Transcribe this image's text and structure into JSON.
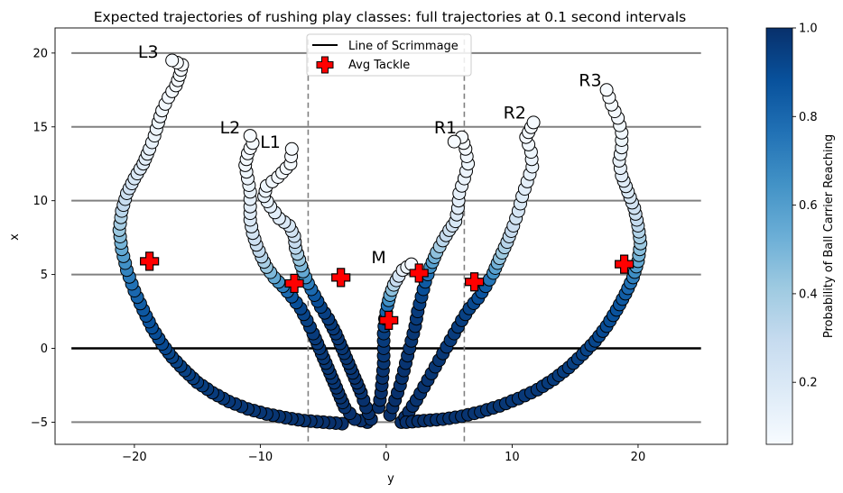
{
  "chart_data": {
    "type": "scatter",
    "title": "Expected trajectories of rushing play classes: full trajectories at 0.1 second intervals",
    "xlabel": "y",
    "ylabel": "x",
    "xlim": [
      -26.3,
      27.1
    ],
    "ylim": [
      -6.5,
      21.7
    ],
    "xticks": [
      -20,
      -10,
      0,
      10,
      20
    ],
    "yticks": [
      -5,
      0,
      5,
      10,
      15,
      20
    ],
    "grid": false,
    "colormap": "Blues",
    "colorbar": {
      "label": "Probability of Ball Carrier Reaching",
      "range": [
        0.06,
        1.0
      ],
      "ticks": [
        0.2,
        0.4,
        0.6,
        0.8,
        1.0
      ],
      "tick_labels": [
        "0.2",
        "0.4",
        "0.6",
        "0.8",
        "1.0"
      ]
    },
    "legend": {
      "placement": "top-center",
      "entries": [
        {
          "label": "Line of Scrimmage",
          "marker": "line",
          "color": "#000000"
        },
        {
          "label": "Avg Tackle",
          "marker": "plus",
          "color": "#ff0000"
        }
      ]
    },
    "hlines": {
      "gray": [
        -5,
        5,
        10,
        15,
        20
      ],
      "scrimmage": 0,
      "xrange": [
        -25,
        25
      ],
      "gray_color": "#808080",
      "scrimmage_color": "#000000"
    },
    "vlines": {
      "positions": [
        -6.2,
        6.2
      ],
      "yrange": [
        -6.3,
        21.2
      ],
      "style": "dashed",
      "color": "#808080"
    },
    "series": [
      {
        "name": "L3",
        "label_pos": [
          -18.9,
          20.1
        ],
        "points": [
          [
            -3.5,
            -5.1
          ],
          [
            -5.0,
            -5.0
          ],
          [
            -6.5,
            -4.9
          ],
          [
            -8.0,
            -4.7
          ],
          [
            -9.5,
            -4.45
          ],
          [
            -11.0,
            -4.1
          ],
          [
            -12.5,
            -3.6
          ],
          [
            -13.8,
            -3.0
          ],
          [
            -15.0,
            -2.3
          ],
          [
            -16.0,
            -1.5
          ],
          [
            -17.0,
            -0.6
          ],
          [
            -17.8,
            0.3
          ],
          [
            -18.6,
            1.4
          ],
          [
            -19.3,
            2.6
          ],
          [
            -20.0,
            3.9
          ],
          [
            -20.6,
            5.3
          ],
          [
            -21.0,
            6.7
          ],
          [
            -21.2,
            8.0
          ],
          [
            -21.0,
            9.3
          ],
          [
            -20.6,
            10.5
          ],
          [
            -20.0,
            11.5
          ],
          [
            -19.3,
            12.5
          ],
          [
            -18.8,
            13.5
          ],
          [
            -18.4,
            14.4
          ],
          [
            -18.1,
            15.3
          ],
          [
            -17.8,
            16.1
          ],
          [
            -17.3,
            17.0
          ],
          [
            -16.7,
            17.8
          ],
          [
            -16.4,
            18.5
          ],
          [
            -16.2,
            19.2
          ],
          [
            -17.0,
            19.5
          ]
        ],
        "probs": [
          1.0,
          1.0,
          0.99,
          0.99,
          0.98,
          0.98,
          0.97,
          0.96,
          0.95,
          0.94,
          0.93,
          0.91,
          0.89,
          0.86,
          0.8,
          0.7,
          0.55,
          0.42,
          0.33,
          0.26,
          0.21,
          0.17,
          0.14,
          0.12,
          0.1,
          0.09,
          0.08,
          0.07,
          0.07,
          0.06,
          0.06
        ]
      },
      {
        "name": "L2",
        "label_pos": [
          -12.4,
          15.0
        ],
        "points": [
          [
            -1.5,
            -5.0
          ],
          [
            -2.5,
            -4.8
          ],
          [
            -3.3,
            -4.0
          ],
          [
            -3.8,
            -3.0
          ],
          [
            -4.3,
            -2.0
          ],
          [
            -4.8,
            -1.0
          ],
          [
            -5.3,
            0.0
          ],
          [
            -5.8,
            1.0
          ],
          [
            -6.3,
            1.9
          ],
          [
            -6.8,
            2.7
          ],
          [
            -7.5,
            3.5
          ],
          [
            -8.2,
            4.2
          ],
          [
            -8.9,
            4.8
          ],
          [
            -9.5,
            5.5
          ],
          [
            -9.9,
            6.2
          ],
          [
            -10.3,
            7.0
          ],
          [
            -10.6,
            7.8
          ],
          [
            -10.8,
            8.7
          ],
          [
            -10.8,
            9.6
          ],
          [
            -10.8,
            10.6
          ],
          [
            -11.0,
            11.5
          ],
          [
            -11.2,
            12.4
          ],
          [
            -11.0,
            13.2
          ],
          [
            -10.6,
            13.9
          ],
          [
            -10.8,
            14.4
          ]
        ],
        "probs": [
          1.0,
          1.0,
          0.99,
          0.99,
          0.98,
          0.98,
          0.97,
          0.96,
          0.94,
          0.92,
          0.86,
          0.72,
          0.55,
          0.42,
          0.34,
          0.28,
          0.23,
          0.19,
          0.16,
          0.13,
          0.11,
          0.09,
          0.08,
          0.07,
          0.06
        ]
      },
      {
        "name": "L1",
        "label_pos": [
          -9.2,
          14.0
        ],
        "points": [
          [
            -1.2,
            -4.8
          ],
          [
            -1.6,
            -4.0
          ],
          [
            -2.0,
            -3.0
          ],
          [
            -2.5,
            -2.0
          ],
          [
            -3.0,
            -1.0
          ],
          [
            -3.5,
            0.0
          ],
          [
            -4.0,
            1.0
          ],
          [
            -4.6,
            2.0
          ],
          [
            -5.2,
            2.8
          ],
          [
            -5.7,
            3.6
          ],
          [
            -6.2,
            4.4
          ],
          [
            -6.6,
            5.2
          ],
          [
            -6.9,
            6.0
          ],
          [
            -7.2,
            6.8
          ],
          [
            -7.3,
            7.6
          ],
          [
            -7.7,
            8.3
          ],
          [
            -8.5,
            8.8
          ],
          [
            -9.2,
            9.6
          ],
          [
            -9.7,
            10.3
          ],
          [
            -9.5,
            11.0
          ],
          [
            -8.6,
            11.6
          ],
          [
            -7.6,
            12.5
          ],
          [
            -7.5,
            13.5
          ]
        ],
        "probs": [
          1.0,
          1.0,
          0.99,
          0.99,
          0.98,
          0.98,
          0.97,
          0.96,
          0.93,
          0.86,
          0.72,
          0.55,
          0.42,
          0.33,
          0.26,
          0.21,
          0.17,
          0.14,
          0.12,
          0.1,
          0.08,
          0.07,
          0.06
        ]
      },
      {
        "name": "M",
        "label_pos": [
          -0.6,
          6.2
        ],
        "points": [
          [
            -0.6,
            -4.0
          ],
          [
            -0.4,
            -3.0
          ],
          [
            -0.3,
            -2.0
          ],
          [
            -0.2,
            -1.0
          ],
          [
            -0.2,
            0.0
          ],
          [
            -0.2,
            1.0
          ],
          [
            -0.1,
            2.0
          ],
          [
            0.1,
            2.9
          ],
          [
            0.3,
            3.6
          ],
          [
            0.6,
            4.3
          ],
          [
            1.0,
            4.9
          ],
          [
            1.3,
            5.3
          ],
          [
            2.0,
            5.7
          ]
        ],
        "probs": [
          1.0,
          1.0,
          0.99,
          0.98,
          0.97,
          0.95,
          0.9,
          0.75,
          0.55,
          0.35,
          0.22,
          0.13,
          0.08
        ]
      },
      {
        "name": "R1",
        "label_pos": [
          4.7,
          15.0
        ],
        "points": [
          [
            0.3,
            -4.5
          ],
          [
            0.7,
            -3.5
          ],
          [
            1.1,
            -2.5
          ],
          [
            1.4,
            -1.5
          ],
          [
            1.7,
            -0.5
          ],
          [
            2.0,
            0.5
          ],
          [
            2.3,
            1.5
          ],
          [
            2.5,
            2.5
          ],
          [
            2.8,
            3.5
          ],
          [
            3.1,
            4.5
          ],
          [
            3.5,
            5.5
          ],
          [
            4.0,
            6.5
          ],
          [
            4.5,
            7.3
          ],
          [
            5.0,
            8.0
          ],
          [
            5.5,
            8.6
          ],
          [
            5.7,
            9.5
          ],
          [
            5.8,
            10.5
          ],
          [
            6.2,
            11.5
          ],
          [
            6.5,
            12.5
          ],
          [
            6.3,
            13.5
          ],
          [
            6.0,
            14.3
          ],
          [
            5.4,
            14.0
          ]
        ],
        "probs": [
          1.0,
          1.0,
          0.99,
          0.99,
          0.98,
          0.98,
          0.97,
          0.96,
          0.93,
          0.85,
          0.65,
          0.45,
          0.33,
          0.26,
          0.21,
          0.17,
          0.14,
          0.12,
          0.1,
          0.08,
          0.07,
          0.06
        ]
      },
      {
        "name": "R2",
        "label_pos": [
          10.2,
          16.0
        ],
        "points": [
          [
            1.2,
            -5.0
          ],
          [
            1.8,
            -4.3
          ],
          [
            2.4,
            -3.5
          ],
          [
            3.0,
            -2.6
          ],
          [
            3.6,
            -1.7
          ],
          [
            4.2,
            -0.8
          ],
          [
            4.8,
            0.1
          ],
          [
            5.4,
            1.0
          ],
          [
            6.0,
            1.9
          ],
          [
            6.6,
            2.7
          ],
          [
            7.3,
            3.4
          ],
          [
            7.9,
            4.2
          ],
          [
            8.5,
            5.1
          ],
          [
            9.0,
            6.1
          ],
          [
            9.6,
            7.2
          ],
          [
            10.1,
            8.3
          ],
          [
            10.5,
            9.3
          ],
          [
            10.8,
            10.3
          ],
          [
            11.2,
            11.3
          ],
          [
            11.6,
            12.3
          ],
          [
            11.5,
            13.3
          ],
          [
            11.1,
            14.3
          ],
          [
            11.7,
            15.3
          ]
        ],
        "probs": [
          1.0,
          1.0,
          0.99,
          0.99,
          0.98,
          0.98,
          0.97,
          0.96,
          0.95,
          0.93,
          0.9,
          0.84,
          0.65,
          0.45,
          0.34,
          0.27,
          0.22,
          0.18,
          0.15,
          0.12,
          0.1,
          0.08,
          0.07
        ]
      },
      {
        "name": "R3",
        "label_pos": [
          16.2,
          18.2
        ],
        "points": [
          [
            1.6,
            -5.0
          ],
          [
            3.0,
            -4.9
          ],
          [
            4.5,
            -4.8
          ],
          [
            6.0,
            -4.6
          ],
          [
            7.5,
            -4.3
          ],
          [
            9.0,
            -3.9
          ],
          [
            10.5,
            -3.4
          ],
          [
            12.0,
            -2.8
          ],
          [
            13.3,
            -2.1
          ],
          [
            14.5,
            -1.3
          ],
          [
            15.6,
            -0.4
          ],
          [
            16.6,
            0.5
          ],
          [
            17.5,
            1.5
          ],
          [
            18.3,
            2.6
          ],
          [
            19.0,
            3.7
          ],
          [
            19.6,
            4.8
          ],
          [
            20.0,
            5.9
          ],
          [
            20.2,
            7.1
          ],
          [
            20.0,
            8.3
          ],
          [
            19.7,
            9.5
          ],
          [
            19.2,
            10.6
          ],
          [
            18.7,
            11.7
          ],
          [
            18.5,
            12.7
          ],
          [
            18.7,
            13.6
          ],
          [
            18.7,
            14.6
          ],
          [
            18.4,
            15.6
          ],
          [
            17.9,
            16.5
          ],
          [
            17.5,
            17.5
          ]
        ],
        "probs": [
          1.0,
          1.0,
          0.99,
          0.99,
          0.98,
          0.98,
          0.97,
          0.97,
          0.96,
          0.95,
          0.94,
          0.92,
          0.9,
          0.88,
          0.84,
          0.72,
          0.55,
          0.42,
          0.32,
          0.25,
          0.2,
          0.16,
          0.13,
          0.11,
          0.09,
          0.08,
          0.07,
          0.06
        ]
      }
    ],
    "avg_tackle": {
      "name": "Avg Tackle",
      "points": [
        [
          -18.8,
          5.9
        ],
        [
          -7.3,
          4.4
        ],
        [
          -3.6,
          4.8
        ],
        [
          0.2,
          1.9
        ],
        [
          2.6,
          5.1
        ],
        [
          7.0,
          4.5
        ],
        [
          18.9,
          5.7
        ]
      ]
    }
  }
}
